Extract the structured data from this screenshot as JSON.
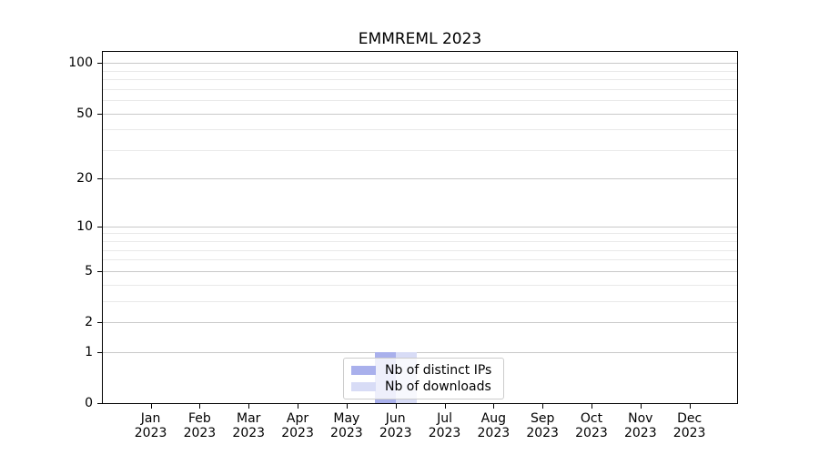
{
  "chart": {
    "title": "EMMREML 2023"
  },
  "chart_data": {
    "type": "bar",
    "title": "EMMREML 2023",
    "categories": [
      "Jan 2023",
      "Feb 2023",
      "Mar 2023",
      "Apr 2023",
      "May 2023",
      "Jun 2023",
      "Jul 2023",
      "Aug 2023",
      "Sep 2023",
      "Oct 2023",
      "Nov 2023",
      "Dec 2023"
    ],
    "series": [
      {
        "name": "Nb of distinct IPs",
        "color": "#a9b0ec",
        "values": [
          0,
          0,
          0,
          0,
          0,
          1,
          0,
          0,
          0,
          0,
          0,
          0
        ]
      },
      {
        "name": "Nb of downloads",
        "color": "#d8dcf6",
        "values": [
          0,
          0,
          0,
          0,
          0,
          1,
          0,
          0,
          0,
          0,
          0,
          0
        ]
      }
    ],
    "xlabel": "",
    "ylabel": "",
    "y_scale": "log1p",
    "y_major_ticks": [
      0,
      1,
      2,
      5,
      10,
      20,
      50,
      100
    ],
    "y_minor_ticks": [
      3,
      4,
      6,
      7,
      8,
      9,
      30,
      40,
      60,
      70,
      80,
      90
    ],
    "ylim": [
      0,
      116
    ],
    "grid": "horizontal-only",
    "legend_position": "lower center"
  },
  "colors": {
    "distinct_ips": "#a9b0ec",
    "downloads": "#d8dcf6",
    "grid_major": "#c9c9c9",
    "grid_minor": "#e9e9e9",
    "axis": "#000000",
    "legend_border": "#cccccc"
  }
}
